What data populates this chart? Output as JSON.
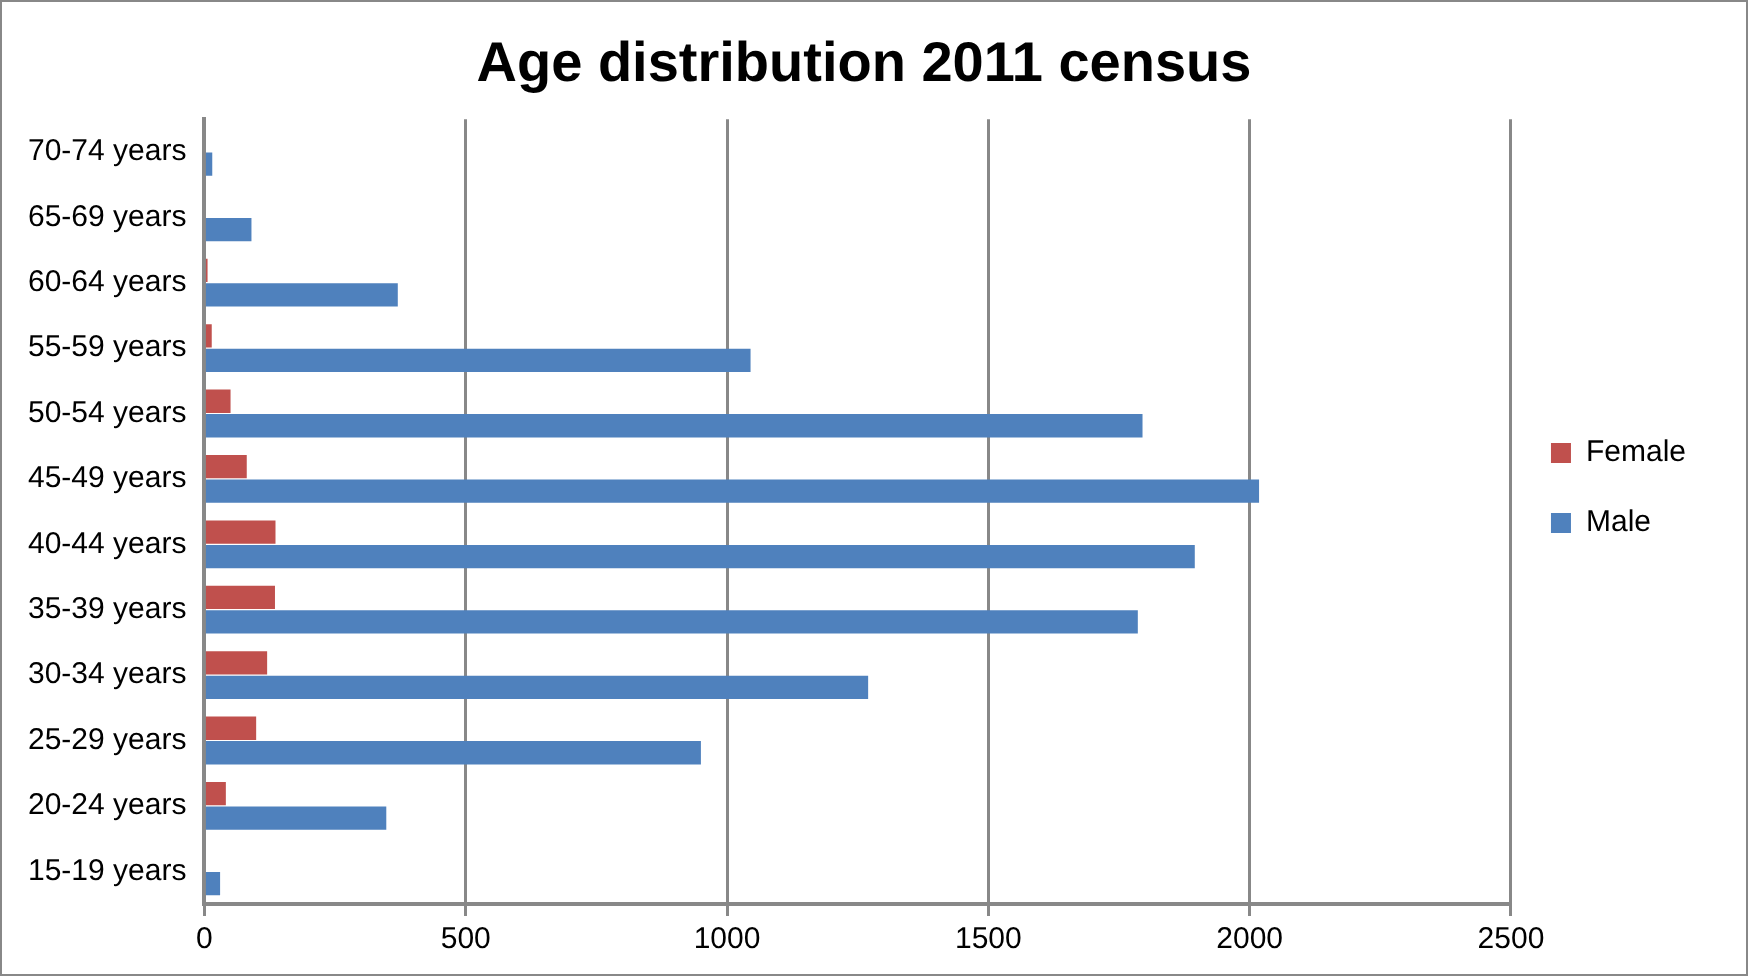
{
  "chart_data": {
    "type": "bar",
    "orientation": "horizontal",
    "title": "Age distribution 2011 census",
    "categories": [
      "70-74 years",
      "65-69 years",
      "60-64 years",
      "55-59 years",
      "50-54 years",
      "45-49 years",
      "40-44 years",
      "35-39 years",
      "30-34 years",
      "25-29 years",
      "20-24 years",
      "15-19 years"
    ],
    "series": [
      {
        "name": "Female",
        "color": "#c0504d",
        "values": [
          0,
          0,
          6,
          14,
          50,
          81,
          136,
          135,
          120,
          99,
          41,
          0
        ]
      },
      {
        "name": "Male",
        "color": "#4f81bd",
        "values": [
          15,
          90,
          370,
          1045,
          1795,
          2018,
          1895,
          1786,
          1270,
          950,
          348,
          30
        ]
      }
    ],
    "xlim": [
      0,
      2500
    ],
    "xticks": [
      0,
      500,
      1000,
      1500,
      2000,
      2500
    ],
    "grid": "x",
    "legend": "right"
  }
}
